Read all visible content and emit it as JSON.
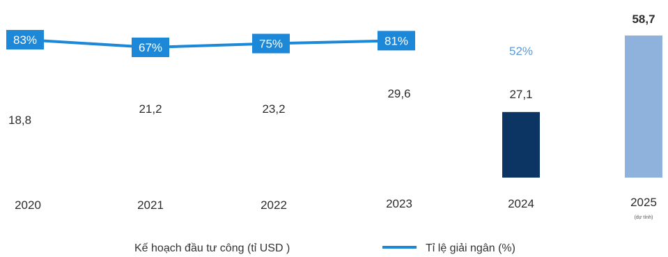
{
  "chart_data": {
    "type": "bar",
    "categories": [
      "2020",
      "2021",
      "2022",
      "2023",
      "2024",
      "2025"
    ],
    "category_notes": [
      "",
      "",
      "",
      "",
      "",
      "(dự tính)"
    ],
    "value_labels": [
      "18,8",
      "21,2",
      "23,2",
      "29,6",
      "27,1",
      "58,7"
    ],
    "series": [
      {
        "name": "Kế hoạch đầu tư công (tỉ USD)",
        "kind": "bar",
        "values": [
          18.8,
          21.2,
          23.2,
          29.6,
          27.1,
          58.7
        ],
        "bar_visible": [
          false,
          false,
          false,
          false,
          true,
          true
        ],
        "colors": [
          "#d6e8f7",
          "#d6e8f7",
          "#d6e8f7",
          "#d6e8f7",
          "#0d3563",
          "#8fb2dd"
        ]
      },
      {
        "name": "Tỉ lệ giải ngân (%)",
        "kind": "line",
        "values": [
          83,
          67,
          75,
          81,
          52,
          null
        ],
        "labels": [
          "83%",
          "67%",
          "75%",
          "81%",
          "52%",
          ""
        ],
        "line_connected": [
          true,
          true,
          true,
          true,
          false,
          false
        ],
        "color": "#1e88d8"
      }
    ],
    "legend": [
      {
        "label": "Kế hoạch đầu tư công (tỉ USD )",
        "marker": "none"
      },
      {
        "label": "Tỉ lệ giải ngân (%)",
        "marker": "line",
        "color": "#1e88d8"
      }
    ],
    "legend_position": "bottom",
    "grid": false
  }
}
